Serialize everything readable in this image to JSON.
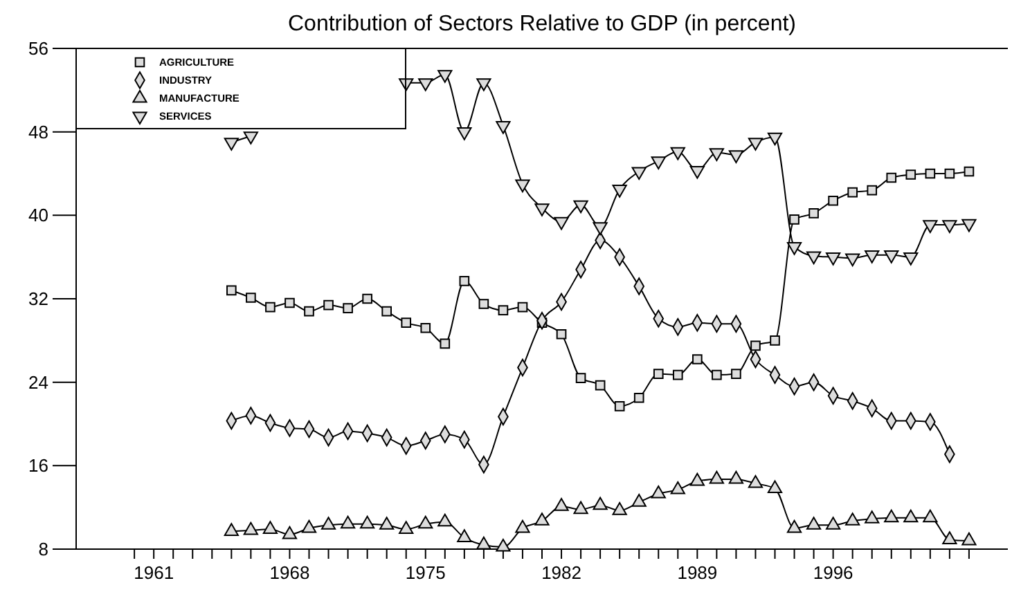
{
  "chart_data": {
    "type": "line",
    "title": "Contribution of Sectors Relative to GDP (in percent)",
    "x": [
      1965,
      1966,
      1967,
      1968,
      1969,
      1970,
      1971,
      1972,
      1973,
      1974,
      1975,
      1976,
      1977,
      1978,
      1979,
      1980,
      1981,
      1982,
      1983,
      1984,
      1985,
      1986,
      1987,
      1988,
      1989,
      1990,
      1991,
      1992,
      1993,
      1994,
      1995,
      1996,
      1997,
      1998,
      1999,
      2000,
      2001,
      2002,
      2003
    ],
    "series": [
      {
        "name": "AGRICULTURE",
        "color": "#000000",
        "marker": "square",
        "values": [
          32.8,
          32.1,
          31.2,
          31.6,
          30.8,
          31.4,
          31.1,
          32.0,
          30.8,
          29.7,
          29.2,
          27.7,
          33.7,
          31.5,
          30.9,
          31.2,
          29.7,
          28.6,
          24.4,
          23.7,
          21.7,
          22.5,
          24.8,
          24.7,
          26.2,
          24.7,
          24.8,
          27.5,
          28.0,
          39.6,
          40.2,
          41.4,
          42.2,
          42.4,
          43.6,
          43.9,
          44.0,
          44.0,
          44.2
        ]
      },
      {
        "name": "INDUSTRY",
        "color": "#000000",
        "marker": "diamond",
        "values": [
          20.3,
          20.8,
          20.1,
          19.6,
          19.5,
          18.7,
          19.3,
          19.1,
          18.7,
          17.9,
          18.4,
          19.0,
          18.5,
          16.1,
          20.7,
          25.4,
          29.9,
          31.7,
          34.8,
          37.6,
          36.0,
          33.2,
          30.1,
          29.3,
          29.7,
          29.6,
          29.6,
          26.2,
          24.7,
          23.6,
          24.0,
          22.7,
          22.2,
          21.5,
          20.3,
          20.3,
          20.2,
          17.1,
          null
        ]
      },
      {
        "name": "MANUFACTURE",
        "color": "#000000",
        "marker": "triangle",
        "values": [
          9.7,
          9.8,
          9.9,
          9.4,
          10.0,
          10.3,
          10.4,
          10.4,
          10.3,
          9.9,
          10.4,
          10.6,
          9.1,
          8.4,
          8.2,
          10.0,
          10.7,
          12.1,
          11.8,
          12.2,
          11.7,
          12.5,
          13.3,
          13.7,
          14.5,
          14.7,
          14.7,
          14.3,
          13.8,
          10.0,
          10.3,
          10.3,
          10.7,
          10.9,
          11.0,
          11.0,
          11.0,
          8.9,
          8.8
        ]
      },
      {
        "name": "SERVICES",
        "color": "#000000",
        "marker": "triangle-down",
        "values": [
          47.0,
          47.6,
          null,
          null,
          null,
          null,
          null,
          null,
          null,
          52.7,
          52.7,
          53.5,
          48.0,
          52.7,
          48.6,
          43.0,
          40.7,
          39.4,
          41.0,
          38.9,
          42.5,
          44.2,
          45.2,
          46.1,
          44.3,
          46.0,
          45.8,
          47.0,
          47.5,
          37.0,
          36.1,
          36.0,
          35.9,
          36.2,
          36.2,
          36.0,
          39.1,
          39.1,
          39.2
        ]
      }
    ],
    "xlim": [
      1957,
      2005
    ],
    "xticks": [
      {
        "value": 1960,
        "label": null
      },
      1961,
      {
        "value": 1962,
        "label": null
      },
      {
        "value": 1963,
        "label": null
      },
      {
        "value": 1964,
        "label": null
      },
      {
        "value": 1965,
        "label": null
      },
      {
        "value": 1966,
        "label": null
      },
      {
        "value": 1967,
        "label": null
      },
      1968,
      {
        "value": 1969,
        "label": null
      },
      {
        "value": 1970,
        "label": null
      },
      {
        "value": 1971,
        "label": null
      },
      {
        "value": 1972,
        "label": null
      },
      {
        "value": 1973,
        "label": null
      },
      {
        "value": 1974,
        "label": null
      },
      1975,
      {
        "value": 1976,
        "label": null
      },
      {
        "value": 1977,
        "label": null
      },
      {
        "value": 1978,
        "label": null
      },
      {
        "value": 1979,
        "label": null
      },
      {
        "value": 1980,
        "label": null
      },
      {
        "value": 1981,
        "label": null
      },
      1982,
      {
        "value": 1983,
        "label": null
      },
      {
        "value": 1984,
        "label": null
      },
      {
        "value": 1985,
        "label": null
      },
      {
        "value": 1986,
        "label": null
      },
      {
        "value": 1987,
        "label": null
      },
      {
        "value": 1988,
        "label": null
      },
      1989,
      {
        "value": 1990,
        "label": null
      },
      {
        "value": 1991,
        "label": null
      },
      {
        "value": 1992,
        "label": null
      },
      {
        "value": 1993,
        "label": null
      },
      {
        "value": 1994,
        "label": null
      },
      {
        "value": 1995,
        "label": null
      },
      1996,
      {
        "value": 1997,
        "label": null
      },
      {
        "value": 1998,
        "label": null
      },
      {
        "value": 1999,
        "label": null
      },
      {
        "value": 2000,
        "label": null
      },
      {
        "value": 2001,
        "label": null
      },
      {
        "value": 2002,
        "label": null
      },
      {
        "value": 2003,
        "label": null
      }
    ],
    "ylim": [
      8,
      56
    ],
    "yticks": [
      8,
      16,
      24,
      32,
      40,
      48,
      56
    ],
    "grid": false,
    "legend": "top left"
  }
}
